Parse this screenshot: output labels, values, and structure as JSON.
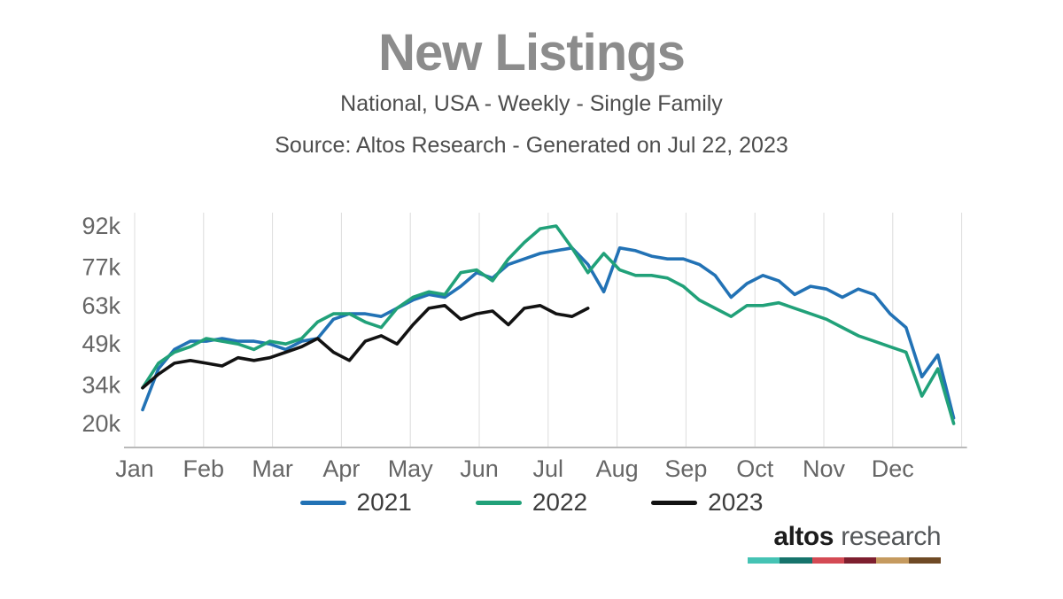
{
  "chart_data": {
    "type": "line",
    "title": "New Listings",
    "subtitle": "National, USA - Weekly - Single Family",
    "source": "Source: Altos Research - Generated on Jul 22, 2023",
    "x_unit": "week",
    "values_unit": "thousands",
    "months": [
      "Jan",
      "Feb",
      "Mar",
      "Apr",
      "May",
      "Jun",
      "Jul",
      "Aug",
      "Sep",
      "Oct",
      "Nov",
      "Dec"
    ],
    "y_ticks": [
      "92k",
      "77k",
      "63k",
      "49k",
      "34k",
      "20k"
    ],
    "y_tick_values": [
      92,
      77,
      63,
      49,
      34,
      20
    ],
    "ylim": [
      15,
      97
    ],
    "grid_on": true,
    "grid_color": "#dcdcdc",
    "axis_color": "#b9b9b9",
    "legend_position": "bottom-center",
    "series": [
      {
        "name": "2021",
        "color": "#2272b5",
        "values": [
          25,
          40,
          47,
          50,
          50,
          51,
          50,
          50,
          49,
          47,
          50,
          51,
          58,
          60,
          60,
          59,
          62,
          65,
          67,
          66,
          70,
          75,
          73,
          78,
          80,
          82,
          83,
          84,
          78,
          68,
          84,
          83,
          81,
          80,
          80,
          78,
          74,
          66,
          71,
          74,
          72,
          67,
          70,
          69,
          66,
          69,
          67,
          60,
          55,
          37,
          45,
          22
        ]
      },
      {
        "name": "2022",
        "color": "#21a179",
        "values": [
          33,
          42,
          46,
          48,
          51,
          50,
          49,
          47,
          50,
          49,
          51,
          57,
          60,
          60,
          57,
          55,
          62,
          66,
          68,
          67,
          75,
          76,
          72,
          80,
          86,
          91,
          92,
          84,
          75,
          82,
          76,
          74,
          74,
          73,
          70,
          65,
          62,
          59,
          63,
          63,
          64,
          62,
          60,
          58,
          55,
          52,
          50,
          48,
          46,
          30,
          40,
          20
        ]
      },
      {
        "name": "2023",
        "color": "#121212",
        "values": [
          33,
          38,
          42,
          43,
          42,
          41,
          44,
          43,
          44,
          46,
          48,
          51,
          46,
          43,
          50,
          52,
          49,
          56,
          62,
          63,
          58,
          60,
          61,
          56,
          62,
          63,
          60,
          59,
          62
        ]
      }
    ]
  },
  "legend": {
    "items": [
      {
        "label": "2021",
        "color": "#2272b5"
      },
      {
        "label": "2022",
        "color": "#21a179"
      },
      {
        "label": "2023",
        "color": "#121212"
      }
    ]
  },
  "logo": {
    "brand_bold": "altos",
    "brand_light": "research",
    "bar_colors": [
      "#45c3b4",
      "#16746c",
      "#d44a54",
      "#7e1f2f",
      "#c59a5f",
      "#6f4a25"
    ]
  }
}
